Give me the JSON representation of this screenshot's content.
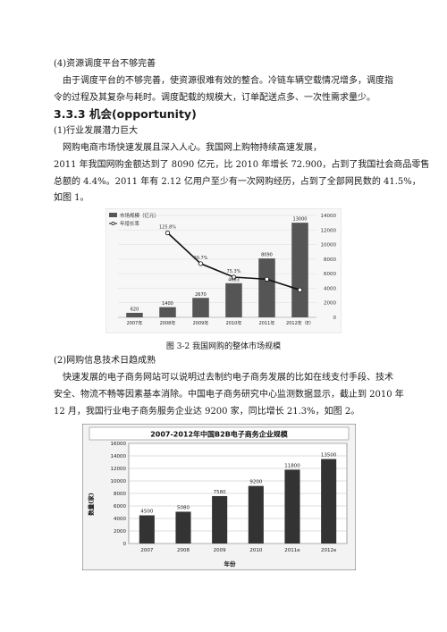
{
  "doc": {
    "p1_heading": "(4)资源调度平台不够完善",
    "p1_body_line1": "由于调度平台的不够完善，使资源很难有效的整合。冷链车辆空载情况增多，调度指",
    "p1_body_line2": "令的过程及其复杂与耗时。调度配载的规模大，订单配送点多、一次性需求量少。",
    "section_title": "3.3.3 机会(opportunity)",
    "s1_heading": "(1)行业发展潜力巨大",
    "s1_line1": "网购电商市场快速发展且深入人心。我国网上购物持续高速发展，",
    "s1_line2": "2011 年我国网购金额达到了 8090 亿元，比 2010 年增长 72.900，占到了我国社会商品零售",
    "s1_line3": "总额的 4.4%。2011 年有 2.12 亿用户至少有一次网购经历，占到了全部网民数的 41.5%，",
    "s1_line4": "如图 1。",
    "fig1_caption": "图 3-2 我国网购的整体市场规模",
    "s2_heading": "(2)网购信息技术日趋成熟",
    "s2_line1": "快速发展的电子商务网站可以说明过去制约电子商务发展的比如在线支付手段、技术",
    "s2_line2": "安全、物流不畅等因素基本消除。中国电子商务研究中心监测数据显示，截止到 2010 年",
    "s2_line3": "12 月，我国行业电子商务服务企业达 9200 家，同比增长 21.3%，如图 2。"
  },
  "chart_data": [
    {
      "type": "bar",
      "legend": {
        "bar_label": "市场规模（亿元）",
        "line_label": "年增长率"
      },
      "categories": [
        "2007年",
        "2008年",
        "2009年",
        "2010年",
        "2011年",
        "2012年（E）"
      ],
      "values": [
        620,
        1400,
        2670,
        4683,
        8090,
        13000
      ],
      "bar_labels": [
        "620",
        "1400",
        "2670",
        "4683",
        "8090",
        "13000"
      ],
      "growth": [
        125.8,
        90.7,
        75.3,
        72.9,
        60.7
      ],
      "growth_labels": [
        "125.8%",
        "90.7%",
        "75.3%",
        "",
        ""
      ],
      "ylim": [
        0,
        14000
      ],
      "yticks": [
        "0",
        "2000",
        "4000",
        "6000",
        "8000",
        "10000",
        "12000",
        "14000"
      ],
      "bar_color": "#555555",
      "line_color": "#111111"
    },
    {
      "type": "bar",
      "title": "2007-2012年中国B2B电子商务企业规模",
      "ylabel": "数量(家)",
      "xlabel": "年份",
      "categories": [
        "2007",
        "2008",
        "2009",
        "2010",
        "2011e",
        "2012e"
      ],
      "values": [
        4500,
        5080,
        7580,
        9200,
        11800,
        13500
      ],
      "bar_labels": [
        "4500",
        "5080",
        "7580",
        "9200",
        "11800",
        "13500"
      ],
      "ylim": [
        0,
        16000
      ],
      "yticks": [
        "0",
        "2000",
        "4000",
        "6000",
        "8000",
        "10000",
        "12000",
        "14000",
        "16000"
      ],
      "bar_color": "#333333",
      "grid": true
    }
  ]
}
